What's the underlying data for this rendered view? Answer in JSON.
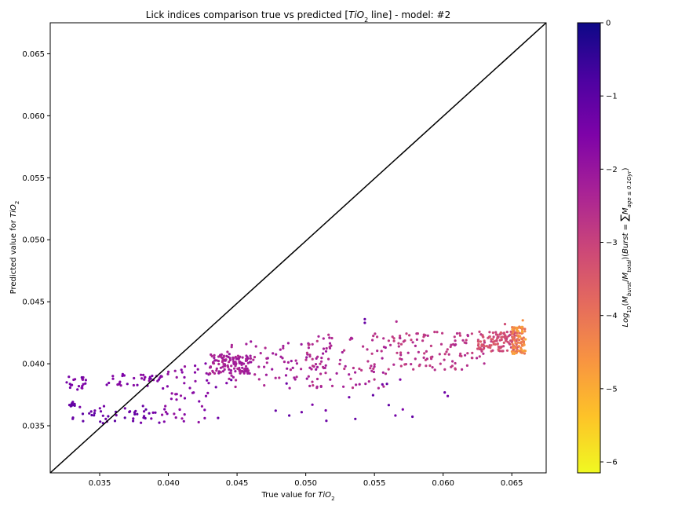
{
  "chart_data": {
    "type": "scatter",
    "title": {
      "prefix": "Lick indices comparison true vs predicted [",
      "math": "TiO",
      "sub": "2",
      "suffix": " line] - model: #2"
    },
    "xlabel": {
      "prefix": "True value for ",
      "math": "TiO",
      "sub": "2"
    },
    "ylabel": {
      "prefix": "Predicted value for ",
      "math": "TiO",
      "sub": "2"
    },
    "xlim": [
      0.0314,
      0.0675
    ],
    "ylim": [
      0.0312,
      0.0675
    ],
    "xticks": [
      0.035,
      0.04,
      0.045,
      0.05,
      0.055,
      0.06,
      0.065
    ],
    "xtick_labels": [
      "0.035",
      "0.040",
      "0.045",
      "0.050",
      "0.055",
      "0.060",
      "0.065"
    ],
    "yticks": [
      0.035,
      0.04,
      0.045,
      0.05,
      0.055,
      0.06,
      0.065
    ],
    "ytick_labels": [
      "0.035",
      "0.040",
      "0.045",
      "0.050",
      "0.055",
      "0.060",
      "0.065"
    ],
    "reference_line": {
      "from": [
        0.0314,
        0.0312
      ],
      "to": [
        0.0675,
        0.0675
      ],
      "color": "#000000"
    },
    "colorbar": {
      "colormap": "plasma",
      "range": [
        -6.15,
        0
      ],
      "ticks": [
        0,
        -1,
        -2,
        -3,
        -4,
        -5,
        -6
      ],
      "tick_labels": [
        "0",
        "−1",
        "−2",
        "−3",
        "−4",
        "−5",
        "−6"
      ],
      "label": "Log10(Mburst/Mtotal)(Burst = ∑ Mage ≤ 0.1Gyr)"
    },
    "grid": false,
    "legend": "none",
    "clusters": [
      {
        "x": [
          0.0325,
          0.034
        ],
        "y": [
          0.0378,
          0.0391
        ],
        "c": [
          -1.8,
          -1.3
        ],
        "n": 18
      },
      {
        "x": [
          0.0328,
          0.0332
        ],
        "y": [
          0.0365,
          0.0371
        ],
        "c": [
          -1.3,
          -1.0
        ],
        "n": 10
      },
      {
        "x": [
          0.033,
          0.0395
        ],
        "y": [
          0.0352,
          0.0366
        ],
        "c": [
          -1.5,
          -1.0
        ],
        "n": 45
      },
      {
        "x": [
          0.0355,
          0.0395
        ],
        "y": [
          0.0382,
          0.0392
        ],
        "c": [
          -1.9,
          -1.4
        ],
        "n": 35
      },
      {
        "x": [
          0.0395,
          0.043
        ],
        "y": [
          0.0352,
          0.0402
        ],
        "c": [
          -2.0,
          -1.5
        ],
        "n": 50
      },
      {
        "x": [
          0.043,
          0.046
        ],
        "y": [
          0.0392,
          0.0408
        ],
        "c": [
          -2.5,
          -2.0
        ],
        "n": 110
      },
      {
        "x": [
          0.044,
          0.052
        ],
        "y": [
          0.038,
          0.0418
        ],
        "c": [
          -2.5,
          -2.0
        ],
        "n": 90
      },
      {
        "x": [
          0.05,
          0.056
        ],
        "y": [
          0.038,
          0.0425
        ],
        "c": [
          -2.8,
          -2.2
        ],
        "n": 80
      },
      {
        "x": [
          0.056,
          0.063
        ],
        "y": [
          0.0395,
          0.0426
        ],
        "c": [
          -3.0,
          -2.4
        ],
        "n": 110
      },
      {
        "x": [
          0.0625,
          0.0655
        ],
        "y": [
          0.041,
          0.0426
        ],
        "c": [
          -3.6,
          -2.8
        ],
        "n": 120
      },
      {
        "x": [
          0.065,
          0.066
        ],
        "y": [
          0.0408,
          0.043
        ],
        "c": [
          -5.0,
          -3.8
        ],
        "n": 90
      },
      {
        "x": [
          0.042,
          0.061
        ],
        "y": [
          0.0354,
          0.0388
        ],
        "c": [
          -1.6,
          -1.1
        ],
        "n": 22
      }
    ],
    "points": [
      {
        "x": 0.0543,
        "y": 0.0436,
        "c": -1.2
      },
      {
        "x": 0.0543,
        "y": 0.0433,
        "c": -1.2
      },
      {
        "x": 0.0566,
        "y": 0.0434,
        "c": -2.5
      },
      {
        "x": 0.0658,
        "y": 0.0435,
        "c": -4.5
      },
      {
        "x": 0.0645,
        "y": 0.0432,
        "c": -3.2
      },
      {
        "x": 0.0515,
        "y": 0.0354,
        "c": -1.2
      },
      {
        "x": 0.0497,
        "y": 0.0361,
        "c": -1.3
      },
      {
        "x": 0.0337,
        "y": 0.0389,
        "c": -1.2
      },
      {
        "x": 0.0326,
        "y": 0.0385,
        "c": -1.4
      }
    ]
  }
}
